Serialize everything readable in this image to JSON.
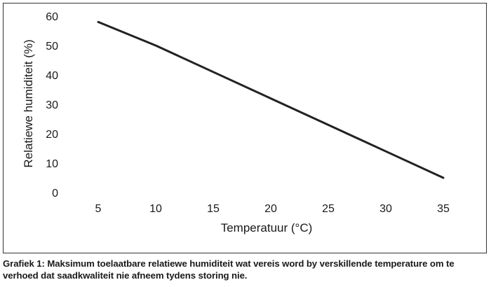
{
  "chart_data": {
    "type": "line",
    "x": [
      5,
      10,
      15,
      20,
      25,
      30,
      35
    ],
    "series": [
      {
        "values": [
          58,
          50,
          41,
          32,
          23,
          14,
          5
        ],
        "color": "#222222"
      }
    ],
    "xlabel": "Temperatuur (°C)",
    "ylabel": "Relatiewe humiditeit (%)",
    "x_ticks": [
      "5",
      "10",
      "15",
      "20",
      "25",
      "30",
      "35"
    ],
    "y_ticks": [
      "0",
      "10",
      "20",
      "30",
      "40",
      "50",
      "60"
    ],
    "xlim": [
      5,
      35
    ],
    "ylim": [
      0,
      60
    ],
    "grid": false,
    "legend": "none"
  },
  "caption": "Grafiek 1: Maksimum toelaatbare relatiewe humiditeit wat vereis word by verskillende temperature om te verhoed dat saadkwaliteit nie afneem tydens storing nie."
}
